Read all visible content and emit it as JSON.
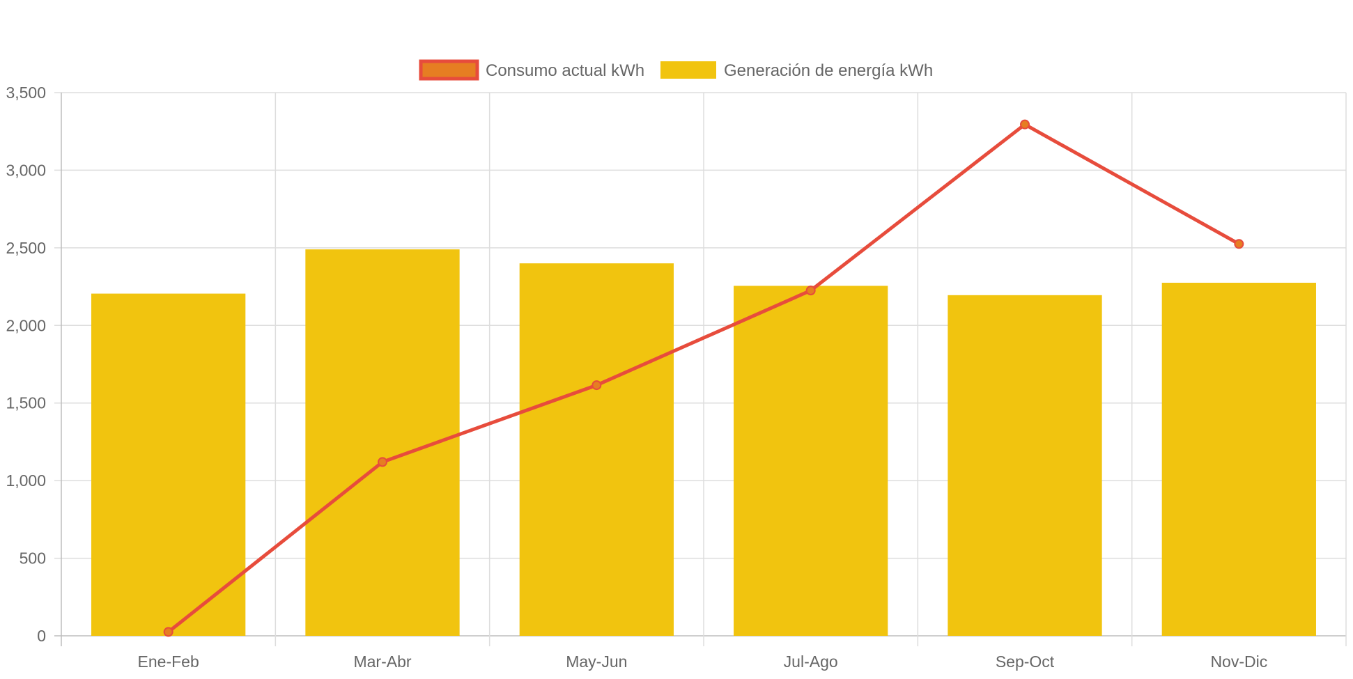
{
  "chart_data": {
    "type": "bar",
    "categories": [
      "Ene-Feb",
      "Mar-Abr",
      "May-Jun",
      "Jul-Ago",
      "Sep-Oct",
      "Nov-Dic"
    ],
    "series": [
      {
        "name": "Consumo actual kWh",
        "type": "line",
        "values": [
          25,
          1120,
          1615,
          2225,
          3295,
          2525
        ],
        "color": "#e74c3c",
        "point_color": "#e67e22"
      },
      {
        "name": "Generación de energía kWh",
        "type": "bar",
        "values": [
          2205,
          2490,
          2400,
          2255,
          2195,
          2275
        ],
        "color": "#f1c40f"
      }
    ],
    "ylim": [
      0,
      3500
    ],
    "yticks": [
      0,
      500,
      1000,
      1500,
      2000,
      2500,
      3000,
      3500
    ],
    "ytick_labels": [
      "0",
      "500",
      "1,000",
      "1,500",
      "2,000",
      "2,500",
      "3,000",
      "3,500"
    ],
    "legend_position": "top-center",
    "grid": true,
    "title": "",
    "xlabel": "",
    "ylabel": ""
  }
}
